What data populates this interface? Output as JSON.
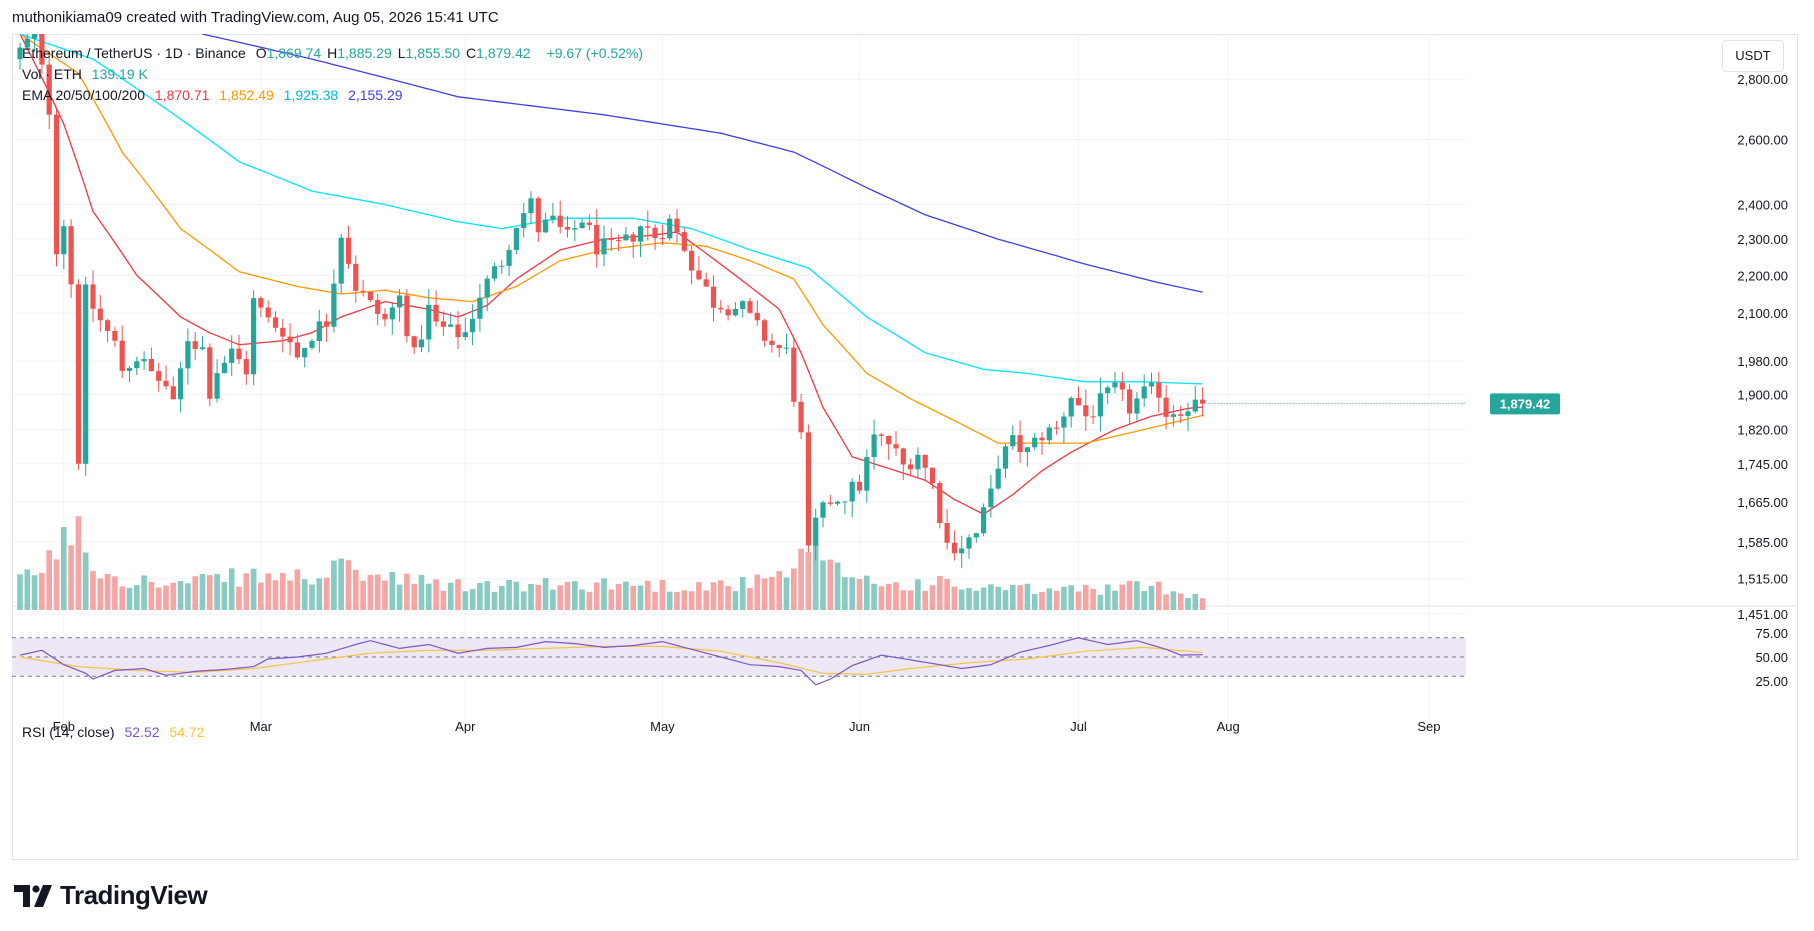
{
  "header": {
    "text": "muthonikiama09 created with TradingView.com, Aug 05, 2026 15:41 UTC"
  },
  "currency_button": "USDT",
  "logo_text": "TradingView",
  "legend": {
    "symbol": "Ethereum / TetherUS · 1D · Binance",
    "ohlc": [
      {
        "label": "O",
        "value": "1,869.74"
      },
      {
        "label": "H",
        "value": "1,885.29"
      },
      {
        "label": "L",
        "value": "1,855.50"
      },
      {
        "label": "C",
        "value": "1,879.42"
      }
    ],
    "change": "+9.67 (+0.52%)",
    "vol_label": "Vol · ETH",
    "vol_value": "139.19 K",
    "ema_label": "EMA 20/50/100/200",
    "ema_values": [
      "1,870.71",
      "1,852.49",
      "1,925.38",
      "2,155.29"
    ],
    "rsi_label": "RSI (14, close)",
    "rsi_values": [
      "52.52",
      "54.72"
    ]
  },
  "colors": {
    "up": "#26a69a",
    "down": "#ef5350",
    "vol_up": "#89cbc2",
    "vol_down": "#f5a5a3",
    "ema20": "#f23645",
    "ema50": "#ff9800",
    "ema100": "#00e5ff",
    "ema200": "#3f3fe0",
    "rsi": "#7e57c2",
    "rsi_ma": "#f5c542",
    "rsi_band": "#ede7f6"
  },
  "chart_data": {
    "type": "candlestick",
    "price_axis_ticks": [
      "2,800.00",
      "2,600.00",
      "2,400.00",
      "2,300.00",
      "2,200.00",
      "2,100.00",
      "1,980.00",
      "1,900.00",
      "1,820.00",
      "1,745.00",
      "1,665.00",
      "1,585.00",
      "1,515.00",
      "1,451.00"
    ],
    "price_range": [
      1440,
      2960
    ],
    "last_price_label": "1,879.42",
    "rsi_axis_ticks": [
      "75.00",
      "50.00",
      "25.00"
    ],
    "time_axis_labels": [
      "Feb",
      "Mar",
      "Apr",
      "May",
      "Jun",
      "Jul",
      "Aug",
      "Sep"
    ],
    "price_path": [
      [
        0,
        2870
      ],
      [
        3,
        2960
      ],
      [
        5,
        2700
      ],
      [
        6,
        2280
      ],
      [
        7,
        2350
      ],
      [
        8,
        2180
      ],
      [
        9,
        1760
      ],
      [
        10,
        2150
      ],
      [
        12,
        2080
      ],
      [
        14,
        2020
      ],
      [
        15,
        1960
      ],
      [
        17,
        1990
      ],
      [
        19,
        1950
      ],
      [
        21,
        1920
      ],
      [
        22,
        1870
      ],
      [
        24,
        2040
      ],
      [
        26,
        2010
      ],
      [
        27,
        1910
      ],
      [
        28,
        1960
      ],
      [
        30,
        2000
      ],
      [
        32,
        1960
      ],
      [
        33,
        2130
      ],
      [
        35,
        2080
      ],
      [
        37,
        2060
      ],
      [
        39,
        1990
      ],
      [
        41,
        2050
      ],
      [
        43,
        2080
      ],
      [
        45,
        2320
      ],
      [
        47,
        2170
      ],
      [
        49,
        2120
      ],
      [
        51,
        2080
      ],
      [
        53,
        2140
      ],
      [
        55,
        1990
      ],
      [
        57,
        2110
      ],
      [
        58,
        2070
      ],
      [
        60,
        2050
      ],
      [
        62,
        2050
      ],
      [
        64,
        2150
      ],
      [
        67,
        2240
      ],
      [
        69,
        2350
      ],
      [
        71,
        2400
      ],
      [
        72,
        2330
      ],
      [
        74,
        2350
      ],
      [
        76,
        2300
      ],
      [
        78,
        2360
      ],
      [
        80,
        2280
      ],
      [
        82,
        2270
      ],
      [
        84,
        2290
      ],
      [
        86,
        2340
      ],
      [
        88,
        2310
      ],
      [
        90,
        2350
      ],
      [
        92,
        2280
      ],
      [
        94,
        2190
      ],
      [
        96,
        2130
      ],
      [
        98,
        2120
      ],
      [
        100,
        2110
      ],
      [
        102,
        2060
      ],
      [
        104,
        2020
      ],
      [
        106,
        2000
      ],
      [
        107,
        1900
      ],
      [
        108,
        1800
      ],
      [
        109,
        1560
      ],
      [
        110,
        1620
      ],
      [
        112,
        1670
      ],
      [
        114,
        1680
      ],
      [
        116,
        1700
      ],
      [
        118,
        1800
      ],
      [
        120,
        1790
      ],
      [
        122,
        1740
      ],
      [
        124,
        1770
      ],
      [
        126,
        1700
      ],
      [
        128,
        1580
      ],
      [
        130,
        1580
      ],
      [
        132,
        1600
      ],
      [
        134,
        1680
      ],
      [
        135,
        1750
      ],
      [
        137,
        1790
      ],
      [
        139,
        1770
      ],
      [
        141,
        1810
      ],
      [
        143,
        1820
      ],
      [
        145,
        1900
      ],
      [
        147,
        1850
      ],
      [
        149,
        1880
      ],
      [
        151,
        1910
      ],
      [
        153,
        1870
      ],
      [
        155,
        1900
      ],
      [
        157,
        1910
      ],
      [
        158,
        1860
      ],
      [
        160,
        1870
      ],
      [
        162,
        1879
      ]
    ],
    "volume_path": [
      [
        0,
        0.25
      ],
      [
        5,
        0.5
      ],
      [
        8,
        0.85
      ],
      [
        10,
        0.4
      ],
      [
        14,
        0.3
      ],
      [
        20,
        0.22
      ],
      [
        30,
        0.3
      ],
      [
        40,
        0.3
      ],
      [
        45,
        0.38
      ],
      [
        50,
        0.28
      ],
      [
        60,
        0.22
      ],
      [
        70,
        0.22
      ],
      [
        80,
        0.24
      ],
      [
        90,
        0.22
      ],
      [
        100,
        0.24
      ],
      [
        105,
        0.3
      ],
      [
        108,
        0.55
      ],
      [
        110,
        0.4
      ],
      [
        115,
        0.3
      ],
      [
        120,
        0.22
      ],
      [
        125,
        0.25
      ],
      [
        130,
        0.2
      ],
      [
        140,
        0.18
      ],
      [
        150,
        0.2
      ],
      [
        155,
        0.22
      ],
      [
        160,
        0.15
      ],
      [
        162,
        0.12
      ]
    ],
    "ema_paths": {
      "ema20": [
        [
          0,
          2960
        ],
        [
          6,
          2650
        ],
        [
          10,
          2380
        ],
        [
          16,
          2200
        ],
        [
          22,
          2090
        ],
        [
          26,
          2050
        ],
        [
          30,
          2020
        ],
        [
          36,
          2030
        ],
        [
          40,
          2050
        ],
        [
          44,
          2090
        ],
        [
          50,
          2130
        ],
        [
          56,
          2110
        ],
        [
          60,
          2090
        ],
        [
          64,
          2120
        ],
        [
          68,
          2190
        ],
        [
          74,
          2270
        ],
        [
          80,
          2300
        ],
        [
          86,
          2310
        ],
        [
          90,
          2320
        ],
        [
          94,
          2260
        ],
        [
          100,
          2170
        ],
        [
          104,
          2110
        ],
        [
          107,
          2000
        ],
        [
          110,
          1870
        ],
        [
          114,
          1760
        ],
        [
          118,
          1740
        ],
        [
          124,
          1710
        ],
        [
          128,
          1670
        ],
        [
          132,
          1640
        ],
        [
          136,
          1680
        ],
        [
          140,
          1730
        ],
        [
          144,
          1770
        ],
        [
          150,
          1820
        ],
        [
          155,
          1850
        ],
        [
          160,
          1868
        ],
        [
          162,
          1871
        ]
      ],
      "ema50": [
        [
          0,
          2960
        ],
        [
          8,
          2820
        ],
        [
          14,
          2560
        ],
        [
          22,
          2330
        ],
        [
          30,
          2210
        ],
        [
          38,
          2170
        ],
        [
          44,
          2150
        ],
        [
          50,
          2160
        ],
        [
          56,
          2140
        ],
        [
          62,
          2130
        ],
        [
          68,
          2170
        ],
        [
          74,
          2240
        ],
        [
          80,
          2270
        ],
        [
          88,
          2290
        ],
        [
          94,
          2280
        ],
        [
          100,
          2240
        ],
        [
          106,
          2190
        ],
        [
          110,
          2070
        ],
        [
          116,
          1950
        ],
        [
          122,
          1890
        ],
        [
          128,
          1840
        ],
        [
          134,
          1790
        ],
        [
          138,
          1790
        ],
        [
          146,
          1790
        ],
        [
          154,
          1820
        ],
        [
          162,
          1852
        ]
      ],
      "ema100": [
        [
          0,
          2960
        ],
        [
          10,
          2870
        ],
        [
          20,
          2700
        ],
        [
          30,
          2530
        ],
        [
          40,
          2440
        ],
        [
          50,
          2400
        ],
        [
          60,
          2350
        ],
        [
          66,
          2330
        ],
        [
          74,
          2360
        ],
        [
          84,
          2360
        ],
        [
          92,
          2330
        ],
        [
          100,
          2270
        ],
        [
          108,
          2220
        ],
        [
          116,
          2090
        ],
        [
          124,
          2000
        ],
        [
          132,
          1960
        ],
        [
          138,
          1950
        ],
        [
          146,
          1930
        ],
        [
          154,
          1930
        ],
        [
          162,
          1925
        ]
      ],
      "ema200": [
        [
          25,
          2960
        ],
        [
          40,
          2870
        ],
        [
          60,
          2740
        ],
        [
          80,
          2680
        ],
        [
          96,
          2620
        ],
        [
          106,
          2560
        ],
        [
          116,
          2450
        ],
        [
          124,
          2370
        ],
        [
          134,
          2300
        ],
        [
          146,
          2230
        ],
        [
          156,
          2180
        ],
        [
          162,
          2155
        ]
      ]
    },
    "rsi_path": [
      [
        0,
        52
      ],
      [
        3,
        57
      ],
      [
        6,
        42
      ],
      [
        9,
        33
      ],
      [
        10,
        27
      ],
      [
        13,
        36
      ],
      [
        17,
        38
      ],
      [
        20,
        31
      ],
      [
        24,
        35
      ],
      [
        28,
        37
      ],
      [
        32,
        40
      ],
      [
        34,
        48
      ],
      [
        38,
        50
      ],
      [
        42,
        54
      ],
      [
        46,
        63
      ],
      [
        48,
        67
      ],
      [
        52,
        59
      ],
      [
        56,
        63
      ],
      [
        60,
        54
      ],
      [
        64,
        59
      ],
      [
        68,
        60
      ],
      [
        72,
        66
      ],
      [
        76,
        64
      ],
      [
        80,
        60
      ],
      [
        84,
        62
      ],
      [
        88,
        66
      ],
      [
        92,
        58
      ],
      [
        96,
        50
      ],
      [
        100,
        42
      ],
      [
        104,
        40
      ],
      [
        107,
        36
      ],
      [
        109,
        21
      ],
      [
        111,
        27
      ],
      [
        114,
        41
      ],
      [
        118,
        52
      ],
      [
        122,
        47
      ],
      [
        126,
        42
      ],
      [
        129,
        38
      ],
      [
        133,
        42
      ],
      [
        137,
        55
      ],
      [
        141,
        62
      ],
      [
        145,
        70
      ],
      [
        149,
        63
      ],
      [
        153,
        67
      ],
      [
        157,
        58
      ],
      [
        159,
        52
      ],
      [
        162,
        52.5
      ]
    ],
    "rsi_ma_path": [
      [
        0,
        50
      ],
      [
        8,
        40
      ],
      [
        16,
        36
      ],
      [
        24,
        34
      ],
      [
        32,
        38
      ],
      [
        40,
        46
      ],
      [
        48,
        54
      ],
      [
        56,
        57
      ],
      [
        64,
        57
      ],
      [
        72,
        59
      ],
      [
        80,
        61
      ],
      [
        88,
        61
      ],
      [
        96,
        56
      ],
      [
        104,
        44
      ],
      [
        110,
        33
      ],
      [
        116,
        32
      ],
      [
        122,
        38
      ],
      [
        130,
        44
      ],
      [
        138,
        48
      ],
      [
        146,
        56
      ],
      [
        154,
        60
      ],
      [
        162,
        54.7
      ]
    ],
    "rsi_range": [
      0,
      100
    ],
    "rsi_bands": [
      30,
      50,
      70
    ]
  }
}
